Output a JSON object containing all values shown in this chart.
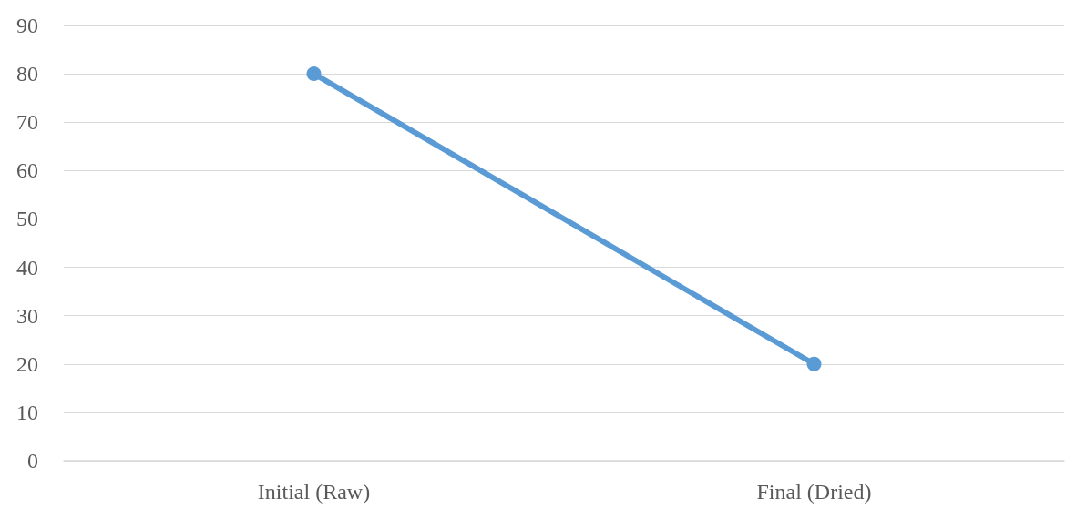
{
  "chart_data": {
    "type": "line",
    "categories": [
      "Initial (Raw)",
      "Final (Dried)"
    ],
    "series": [
      {
        "color": "#5b9bd5",
        "values": [
          80,
          20
        ]
      }
    ],
    "ylim": [
      0,
      90
    ],
    "yticks": [
      0,
      10,
      20,
      30,
      40,
      50,
      60,
      70,
      80,
      90
    ],
    "grid": "y",
    "marker": "circle",
    "line_style": "solid"
  }
}
